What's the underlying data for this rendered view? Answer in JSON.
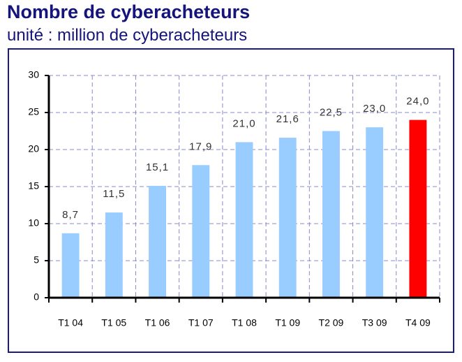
{
  "chart_data": {
    "type": "bar",
    "title": "Nombre de cyberacheteurs",
    "subtitle": "unité : million de cyberacheteurs",
    "categories": [
      "T1 04",
      "T1 05",
      "T1 06",
      "T1 07",
      "T1 08",
      "T1 09",
      "T2 09",
      "T3 09",
      "T4 09"
    ],
    "values": [
      8.7,
      11.5,
      15.1,
      17.9,
      21.0,
      21.6,
      22.5,
      23.0,
      24.0
    ],
    "value_labels": [
      "8,7",
      "11,5",
      "15,1",
      "17,9",
      "21,0",
      "21,6",
      "22,5",
      "23,0",
      "24,0"
    ],
    "colors": [
      "#99ccff",
      "#99ccff",
      "#99ccff",
      "#99ccff",
      "#99ccff",
      "#99ccff",
      "#99ccff",
      "#99ccff",
      "#ff0000"
    ],
    "ylim": [
      0,
      30
    ],
    "yticks": [
      0,
      5,
      10,
      15,
      20,
      25,
      30
    ],
    "grid": true
  }
}
